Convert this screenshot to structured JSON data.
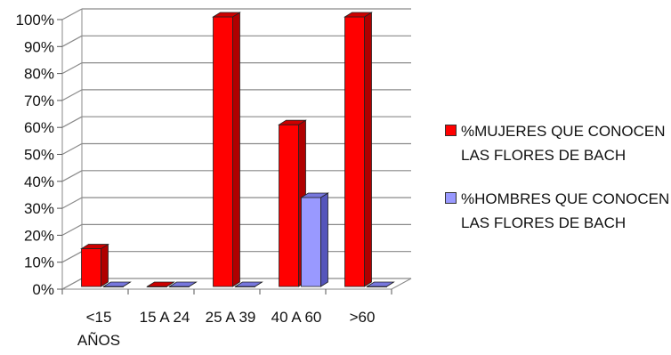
{
  "chart_data": {
    "type": "bar",
    "title": "",
    "xlabel": "",
    "ylabel": "",
    "ylim": [
      0,
      100
    ],
    "y_ticks": [
      "0%",
      "10%",
      "20%",
      "30%",
      "40%",
      "50%",
      "60%",
      "70%",
      "80%",
      "90%",
      "100%"
    ],
    "categories": [
      [
        "<15",
        "AÑOS"
      ],
      [
        "15 A 24"
      ],
      [
        "25 A 39"
      ],
      [
        "40 A 60"
      ],
      [
        ">60"
      ]
    ],
    "series": [
      {
        "name": "%MUJERES QUE CONOCEN LAS FLORES DE BACH",
        "values": [
          14,
          0,
          100,
          60,
          100
        ],
        "color": "#ff0000",
        "side_color": "#b00000",
        "top_color": "#cc0000"
      },
      {
        "name": "%HOMBRES QUE CONOCEN LAS FLORES DE BACH",
        "values": [
          0,
          0,
          0,
          33,
          0
        ],
        "color": "#9999ff",
        "side_color": "#5555bb",
        "top_color": "#7777dd"
      }
    ],
    "grid": true,
    "legend_position": "right"
  }
}
